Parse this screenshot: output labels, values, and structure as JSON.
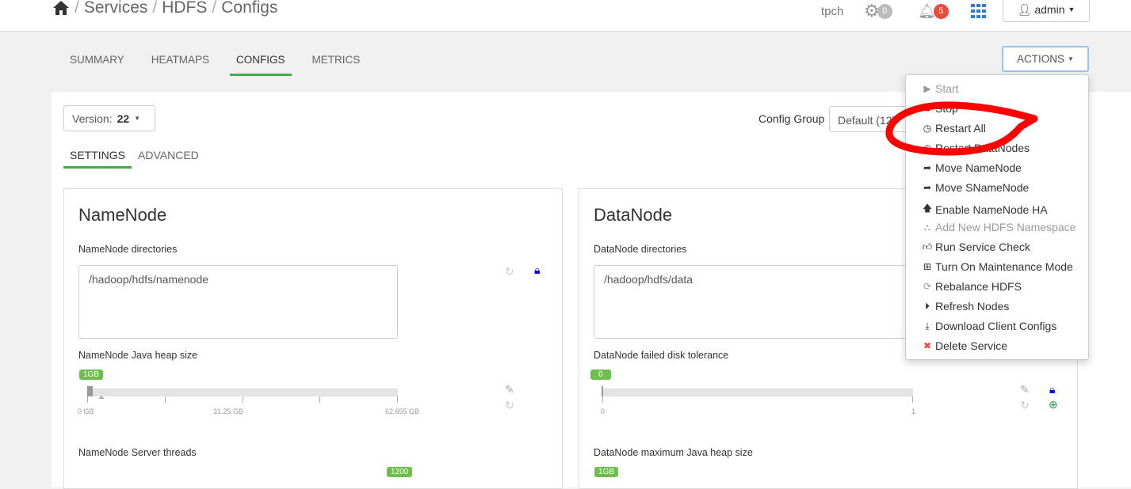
{
  "breadcrumb": {
    "items": [
      "Services",
      "HDFS",
      "Configs"
    ],
    "separator": "/"
  },
  "header": {
    "cluster": "tpch",
    "ops_count": "0",
    "alerts_count": "5",
    "user": "admin"
  },
  "tabs": [
    {
      "label": "SUMMARY"
    },
    {
      "label": "HEATMAPS"
    },
    {
      "label": "CONFIGS",
      "active": true
    },
    {
      "label": "METRICS"
    }
  ],
  "actions_label": "ACTIONS",
  "version": {
    "label": "Version:",
    "value": "22"
  },
  "config_group": {
    "label": "Config Group",
    "value": "Default (12)"
  },
  "subtabs": [
    {
      "label": "SETTINGS",
      "active": true
    },
    {
      "label": "ADVANCED"
    }
  ],
  "namenode": {
    "title": "NameNode",
    "dirs_label": "NameNode directories",
    "dirs_value": "/hadoop/hdfs/namenode",
    "heap_label": "NameNode Java heap size",
    "heap_value": "1GB",
    "heap_ticks": [
      "0 GB",
      "31.25 GB",
      "62.655 GB"
    ],
    "threads_label": "NameNode Server threads",
    "threads_value": "1200"
  },
  "datanode": {
    "title": "DataNode",
    "dirs_label": "DataNode directories",
    "dirs_value": "/hadoop/hdfs/data",
    "tol_label": "DataNode failed disk tolerance",
    "tol_value": "0",
    "tol_ticks": [
      "0",
      "1"
    ],
    "heap_label": "DataNode maximum Java heap size",
    "heap_value": "1GB"
  },
  "menu": [
    {
      "label": "Start",
      "icon": "play-icon",
      "disabled": true
    },
    {
      "label": "Stop",
      "icon": "stop-icon"
    },
    {
      "label": "Restart All",
      "icon": "clock-icon"
    },
    {
      "label": "Restart DataNodes",
      "icon": "clock-icon"
    },
    {
      "label": "Move NameNode",
      "icon": "share-icon"
    },
    {
      "label": "Move SNameNode",
      "icon": "share-icon"
    },
    {
      "label": "Enable NameNode HA",
      "icon": "arrow-up-icon"
    },
    {
      "label": "Add New HDFS Namespace",
      "icon": "sitemap-icon",
      "disabled": true
    },
    {
      "label": "Run Service Check",
      "icon": "thumbs-up-icon"
    },
    {
      "label": "Turn On Maintenance Mode",
      "icon": "medkit-icon"
    },
    {
      "label": "Rebalance HDFS",
      "icon": "refresh-icon"
    },
    {
      "label": "Refresh Nodes",
      "icon": "play-circle-icon"
    },
    {
      "label": "Download Client Configs",
      "icon": "download-icon"
    },
    {
      "label": "Delete Service",
      "icon": "times-icon"
    }
  ],
  "colors": {
    "accent": "#3fae49",
    "pill": "#6bbf4a",
    "alert": "#e74c3c",
    "lock": "#0000ff",
    "annotation": "#ff0000"
  }
}
